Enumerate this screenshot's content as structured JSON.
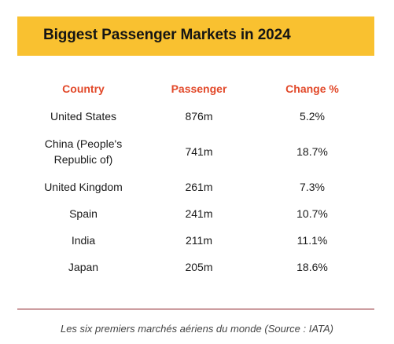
{
  "title": "Biggest Passenger Markets in 2024",
  "colors": {
    "banner": "#f9c130",
    "header_text": "#e2492a",
    "divider": "#8a1c24"
  },
  "table": {
    "headers": {
      "country": "Country",
      "passenger": "Passenger",
      "change": "Change %"
    },
    "rows": [
      {
        "country": "United States",
        "passenger": "876m",
        "change": "5.2%"
      },
      {
        "country": "China (People's Republic of)",
        "passenger": "741m",
        "change": "18.7%"
      },
      {
        "country": "United Kingdom",
        "passenger": "261m",
        "change": "7.3%"
      },
      {
        "country": "Spain",
        "passenger": "241m",
        "change": "10.7%"
      },
      {
        "country": "India",
        "passenger": "211m",
        "change": "11.1%"
      },
      {
        "country": "Japan",
        "passenger": "205m",
        "change": "18.6%"
      }
    ]
  },
  "caption": "Les six premiers marchés aériens du monde (Source : IATA)"
}
